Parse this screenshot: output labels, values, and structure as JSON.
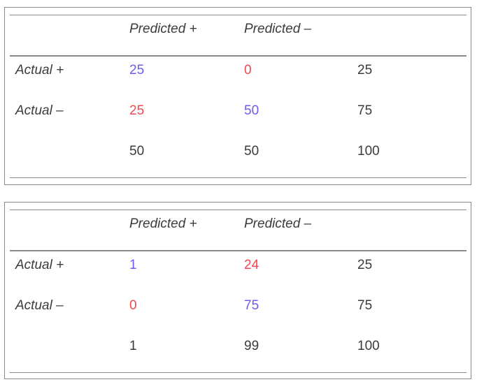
{
  "colors": {
    "correct": "#6b5cf0",
    "error": "#f0484e",
    "text": "#3a3a3a",
    "rule": "#8a8a8a"
  },
  "tables": [
    {
      "headers": [
        "",
        "Predicted +",
        "Predicted –",
        ""
      ],
      "rows": [
        {
          "label": "Actual +",
          "values": [
            "25",
            "0",
            "25"
          ],
          "tones": [
            "correct",
            "error",
            "plain"
          ]
        },
        {
          "label": "Actual –",
          "values": [
            "25",
            "50",
            "75"
          ],
          "tones": [
            "error",
            "correct",
            "plain"
          ]
        },
        {
          "label": "",
          "values": [
            "50",
            "50",
            "100"
          ],
          "tones": [
            "plain",
            "plain",
            "plain"
          ]
        }
      ]
    },
    {
      "headers": [
        "",
        "Predicted +",
        "Predicted –",
        ""
      ],
      "rows": [
        {
          "label": "Actual +",
          "values": [
            "1",
            "24",
            "25"
          ],
          "tones": [
            "correct",
            "error",
            "plain"
          ]
        },
        {
          "label": "Actual –",
          "values": [
            "0",
            "75",
            "75"
          ],
          "tones": [
            "error",
            "correct",
            "plain"
          ]
        },
        {
          "label": "",
          "values": [
            "1",
            "99",
            "100"
          ],
          "tones": [
            "plain",
            "plain",
            "plain"
          ]
        }
      ]
    }
  ]
}
